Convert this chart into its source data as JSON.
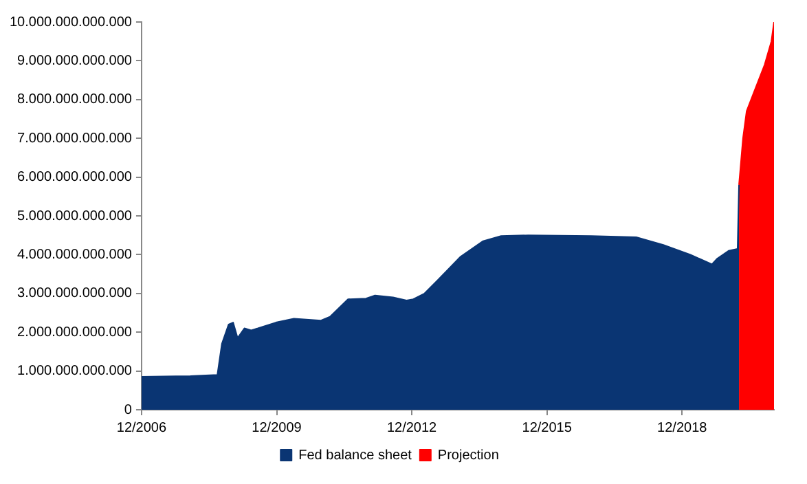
{
  "chart_data": {
    "type": "area",
    "legend": "bottom",
    "grid": false,
    "marker": "none",
    "xlim": [
      "2006-12",
      "2020-12-16"
    ],
    "xticks": [
      {
        "value": "2006-12",
        "label": "12/2006"
      },
      {
        "value": "2009-12",
        "label": "12/2009"
      },
      {
        "value": "2012-12",
        "label": "12/2012"
      },
      {
        "value": "2015-12",
        "label": "12/2015"
      },
      {
        "value": "2018-12",
        "label": "12/2018"
      }
    ],
    "ylim": [
      0,
      10000000000000
    ],
    "yticks": [
      {
        "value": 0,
        "label": "0"
      },
      {
        "value": 1000000000000,
        "label": "1.000.000.000.000"
      },
      {
        "value": 2000000000000,
        "label": "2.000.000.000.000"
      },
      {
        "value": 3000000000000,
        "label": "3.000.000.000.000"
      },
      {
        "value": 4000000000000,
        "label": "4.000.000.000.000"
      },
      {
        "value": 5000000000000,
        "label": "5.000.000.000.000"
      },
      {
        "value": 6000000000000,
        "label": "6.000.000.000.000"
      },
      {
        "value": 7000000000000,
        "label": "7.000.000.000.000"
      },
      {
        "value": 8000000000000,
        "label": "8.000.000.000.000"
      },
      {
        "value": 9000000000000,
        "label": "9.000.000.000.000"
      },
      {
        "value": 10000000000000,
        "label": "10.000.000.000.000"
      }
    ],
    "series": [
      {
        "name": "Fed balance sheet",
        "color": "#0a3573",
        "x": [
          "2006-12",
          "2008-01",
          "2008-08-07",
          "2008-09-13",
          "2008-11-07",
          "2008-12-13",
          "2009-01-19",
          "2009-03-13",
          "2009-05-07",
          "2009-07-01",
          "2009-11-25",
          "2010-04-19",
          "2010-11-25",
          "2011-02-07",
          "2011-07-01",
          "2011-11-25",
          "2012-02-07",
          "2012-07-01",
          "2012-10-19",
          "2012-12-13",
          "2013-03-13",
          "2013-07-01",
          "2014-01-01",
          "2014-07-01",
          "2014-11-25",
          "2015-07-01",
          "2016-11-25",
          "2017-11-25",
          "2018-07-01",
          "2019-02-07",
          "2019-07-30",
          "2019-09-13",
          "2019-12-13",
          "2020-02-25",
          "2020-03-06"
        ],
        "values": [
          850000000000,
          870000000000,
          900000000000,
          1700000000000,
          2200000000000,
          2250000000000,
          1850000000000,
          2100000000000,
          2050000000000,
          2100000000000,
          2250000000000,
          2350000000000,
          2300000000000,
          2400000000000,
          2850000000000,
          2870000000000,
          2950000000000,
          2900000000000,
          2820000000000,
          2850000000000,
          3000000000000,
          3350000000000,
          3950000000000,
          4350000000000,
          4480000000000,
          4500000000000,
          4480000000000,
          4450000000000,
          4250000000000,
          4000000000000,
          3750000000000,
          3900000000000,
          4100000000000,
          4150000000000,
          5800000000000
        ]
      },
      {
        "name": "Projection",
        "color": "#ff0000",
        "x": [
          "2020-03-06",
          "2020-03-17",
          "2020-04-08",
          "2020-05-07",
          "2020-07-19",
          "2020-10-01",
          "2020-11-25",
          "2020-12-16"
        ],
        "values": [
          5800000000000,
          6200000000000,
          7000000000000,
          7700000000000,
          8300000000000,
          8900000000000,
          9500000000000,
          10000000000000
        ]
      }
    ]
  }
}
